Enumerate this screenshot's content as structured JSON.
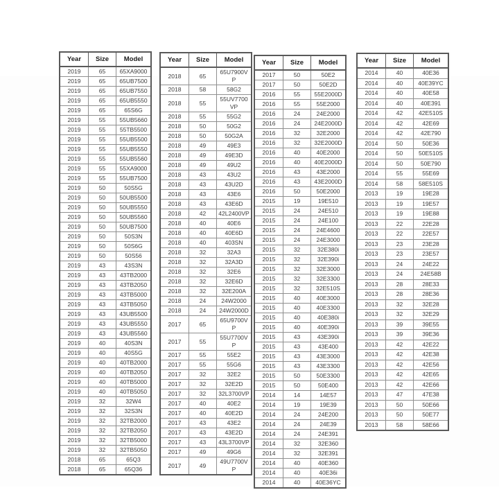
{
  "colors": {
    "background": "#ffffff",
    "table_border_outer": "#595959",
    "table_border_inner": "#8f8f8f",
    "header_text": "#1a1a1a",
    "cell_text": "#3d3d3d"
  },
  "tables": [
    {
      "name": "table-2019-2018-models",
      "headers": [
        "Year",
        "Size",
        "Model"
      ],
      "rows": [
        [
          "2019",
          "65",
          "65XA9000"
        ],
        [
          "2019",
          "65",
          "65UB7500"
        ],
        [
          "2019",
          "65",
          "65UB7550"
        ],
        [
          "2019",
          "65",
          "65UB5550"
        ],
        [
          "2019",
          "65",
          "65S6G"
        ],
        [
          "2019",
          "55",
          "55UB5660"
        ],
        [
          "2019",
          "55",
          "55TB5500"
        ],
        [
          "2019",
          "55",
          "55UB5500"
        ],
        [
          "2019",
          "55",
          "55UB5550"
        ],
        [
          "2019",
          "55",
          "55UB5560"
        ],
        [
          "2019",
          "55",
          "55XA9000"
        ],
        [
          "2019",
          "55",
          "55UB7500"
        ],
        [
          "2019",
          "50",
          "50S5G"
        ],
        [
          "2019",
          "50",
          "50UB5500"
        ],
        [
          "2019",
          "50",
          "50UB5550"
        ],
        [
          "2019",
          "50",
          "50UB5560"
        ],
        [
          "2019",
          "50",
          "50UB7500"
        ],
        [
          "2019",
          "50",
          "50S3N"
        ],
        [
          "2019",
          "50",
          "50S6G"
        ],
        [
          "2019",
          "50",
          "50S56"
        ],
        [
          "2019",
          "43",
          "43S3N"
        ],
        [
          "2019",
          "43",
          "43TB2000"
        ],
        [
          "2019",
          "43",
          "43TB2050"
        ],
        [
          "2019",
          "43",
          "43TB5000"
        ],
        [
          "2019",
          "43",
          "43TB5050"
        ],
        [
          "2019",
          "43",
          "43UB5500"
        ],
        [
          "2019",
          "43",
          "43UB5550"
        ],
        [
          "2019",
          "43",
          "43UB5560"
        ],
        [
          "2019",
          "40",
          "40S3N"
        ],
        [
          "2019",
          "40",
          "40S5G"
        ],
        [
          "2019",
          "40",
          "40TB2000"
        ],
        [
          "2019",
          "40",
          "40TB2050"
        ],
        [
          "2019",
          "40",
          "40TB5000"
        ],
        [
          "2019",
          "40",
          "40TB5050"
        ],
        [
          "2019",
          "32",
          "32W4"
        ],
        [
          "2019",
          "32",
          "32S3N"
        ],
        [
          "2019",
          "32",
          "32TB2000"
        ],
        [
          "2019",
          "32",
          "32TB2050"
        ],
        [
          "2019",
          "32",
          "32TB5000"
        ],
        [
          "2019",
          "32",
          "32TB5050"
        ],
        [
          "2018",
          "65",
          "65Q3"
        ],
        [
          "2018",
          "65",
          "65Q36"
        ]
      ]
    },
    {
      "name": "table-2018-2017-models",
      "headers": [
        "Year",
        "Size",
        "Model"
      ],
      "rows": [
        [
          "2018",
          "65",
          "65U7900VP"
        ],
        [
          "2018",
          "58",
          "58G2"
        ],
        [
          "2018",
          "55",
          "55UV7700VP"
        ],
        [
          "2018",
          "55",
          "55G2"
        ],
        [
          "2018",
          "50",
          "50G2"
        ],
        [
          "2018",
          "50",
          "50G2A"
        ],
        [
          "2018",
          "49",
          "49E3"
        ],
        [
          "2018",
          "49",
          "49E3D"
        ],
        [
          "2018",
          "49",
          "49U2"
        ],
        [
          "2018",
          "43",
          "43U2"
        ],
        [
          "2018",
          "43",
          "43U2D"
        ],
        [
          "2018",
          "43",
          "43E6"
        ],
        [
          "2018",
          "43",
          "43E6D"
        ],
        [
          "2018",
          "42",
          "42L2400VP"
        ],
        [
          "2018",
          "40",
          "40E6"
        ],
        [
          "2018",
          "40",
          "40E6D"
        ],
        [
          "2018",
          "40",
          "403SN"
        ],
        [
          "2018",
          "32",
          "32A3"
        ],
        [
          "2018",
          "32",
          "32A3D"
        ],
        [
          "2018",
          "32",
          "32E6"
        ],
        [
          "2018",
          "32",
          "32E6D"
        ],
        [
          "2018",
          "32",
          "32E200A"
        ],
        [
          "2018",
          "24",
          "24W2000"
        ],
        [
          "2018",
          "24",
          "24W2000D"
        ],
        [
          "2017",
          "65",
          "65U9700VP"
        ],
        [
          "2017",
          "55",
          "55U7700VP"
        ],
        [
          "2017",
          "55",
          "55E2"
        ],
        [
          "2017",
          "55",
          "55G6"
        ],
        [
          "2017",
          "32",
          "32E2"
        ],
        [
          "2017",
          "32",
          "32E2D"
        ],
        [
          "2017",
          "32",
          "32L3700VP"
        ],
        [
          "2017",
          "40",
          "40E2"
        ],
        [
          "2017",
          "40",
          "40E2D"
        ],
        [
          "2017",
          "43",
          "43E2"
        ],
        [
          "2017",
          "43",
          "43E2D"
        ],
        [
          "2017",
          "43",
          "43L3700VP"
        ],
        [
          "2017",
          "49",
          "49G6"
        ],
        [
          "2017",
          "49",
          "49U7700VP"
        ]
      ]
    },
    {
      "name": "table-2017-2014-models",
      "headers": [
        "Year",
        "Size",
        "Model"
      ],
      "rows": [
        [
          "2017",
          "50",
          "50E2"
        ],
        [
          "2017",
          "50",
          "50E2D"
        ],
        [
          "2016",
          "55",
          "55E2000D"
        ],
        [
          "2016",
          "55",
          "55E2000"
        ],
        [
          "2016",
          "24",
          "24E2000"
        ],
        [
          "2016",
          "24",
          "24E2000D"
        ],
        [
          "2016",
          "32",
          "32E2000"
        ],
        [
          "2016",
          "32",
          "32E2000D"
        ],
        [
          "2016",
          "40",
          "40E2000"
        ],
        [
          "2016",
          "40",
          "40E2000D"
        ],
        [
          "2016",
          "43",
          "43E2000"
        ],
        [
          "2016",
          "43",
          "43E2000D"
        ],
        [
          "2016",
          "50",
          "50E2000"
        ],
        [
          "2015",
          "19",
          "19E510"
        ],
        [
          "2015",
          "24",
          "24E510"
        ],
        [
          "2015",
          "24",
          "24E100"
        ],
        [
          "2015",
          "24",
          "24E4600"
        ],
        [
          "2015",
          "24",
          "24E3000"
        ],
        [
          "2015",
          "32",
          "32E380i"
        ],
        [
          "2015",
          "32",
          "32E390i"
        ],
        [
          "2015",
          "32",
          "32E3000"
        ],
        [
          "2015",
          "32",
          "32E3300"
        ],
        [
          "2015",
          "32",
          "32E510S"
        ],
        [
          "2015",
          "40",
          "40E3000"
        ],
        [
          "2015",
          "40",
          "40E3300"
        ],
        [
          "2015",
          "40",
          "40E380i"
        ],
        [
          "2015",
          "40",
          "40E390i"
        ],
        [
          "2015",
          "43",
          "43E390i"
        ],
        [
          "2015",
          "43",
          "43E400"
        ],
        [
          "2015",
          "43",
          "43E3000"
        ],
        [
          "2015",
          "43",
          "43E3300"
        ],
        [
          "2015",
          "50",
          "50E3300"
        ],
        [
          "2015",
          "50",
          "50E400"
        ],
        [
          "2014",
          "14",
          "14E57"
        ],
        [
          "2014",
          "19",
          "19E39"
        ],
        [
          "2014",
          "24",
          "24E200"
        ],
        [
          "2014",
          "24",
          "24E39"
        ],
        [
          "2014",
          "24",
          "24E391"
        ],
        [
          "2014",
          "32",
          "32E360"
        ],
        [
          "2014",
          "32",
          "32E391"
        ],
        [
          "2014",
          "40",
          "40E360"
        ],
        [
          "2014",
          "40",
          "40E36i"
        ],
        [
          "2014",
          "40",
          "40E36YC"
        ]
      ]
    },
    {
      "name": "table-2014-2013-models",
      "headers": [
        "Year",
        "Size",
        "Model"
      ],
      "rows": [
        [
          "2014",
          "40",
          "40E36"
        ],
        [
          "2014",
          "40",
          "40E39YC"
        ],
        [
          "2014",
          "40",
          "40E58"
        ],
        [
          "2014",
          "40",
          "40E391"
        ],
        [
          "2014",
          "42",
          "42E510S"
        ],
        [
          "2014",
          "42",
          "42E69"
        ],
        [
          "2014",
          "42",
          "42E790"
        ],
        [
          "2014",
          "50",
          "50E36"
        ],
        [
          "2014",
          "50",
          "50E510S"
        ],
        [
          "2014",
          "50",
          "50E790"
        ],
        [
          "2014",
          "55",
          "55E69"
        ],
        [
          "2014",
          "58",
          "58E510S"
        ],
        [
          "2013",
          "19",
          "19E28"
        ],
        [
          "2013",
          "19",
          "19E57"
        ],
        [
          "2013",
          "19",
          "19E88"
        ],
        [
          "2013",
          "22",
          "22E28"
        ],
        [
          "2013",
          "22",
          "22E57"
        ],
        [
          "2013",
          "23",
          "23E28"
        ],
        [
          "2013",
          "23",
          "23E57"
        ],
        [
          "2013",
          "24",
          "24E22"
        ],
        [
          "2013",
          "24",
          "24E58B"
        ],
        [
          "2013",
          "28",
          "28E33"
        ],
        [
          "2013",
          "28",
          "28E36"
        ],
        [
          "2013",
          "32",
          "32E28"
        ],
        [
          "2013",
          "32",
          "32E29"
        ],
        [
          "2013",
          "39",
          "39E55"
        ],
        [
          "2013",
          "39",
          "39E36"
        ],
        [
          "2013",
          "42",
          "42E22"
        ],
        [
          "2013",
          "42",
          "42E38"
        ],
        [
          "2013",
          "42",
          "42E56"
        ],
        [
          "2013",
          "42",
          "42E65"
        ],
        [
          "2013",
          "42",
          "42E66"
        ],
        [
          "2013",
          "47",
          "47E38"
        ],
        [
          "2013",
          "50",
          "50E66"
        ],
        [
          "2013",
          "50",
          "50E77"
        ],
        [
          "2013",
          "58",
          "58E66"
        ]
      ]
    }
  ]
}
